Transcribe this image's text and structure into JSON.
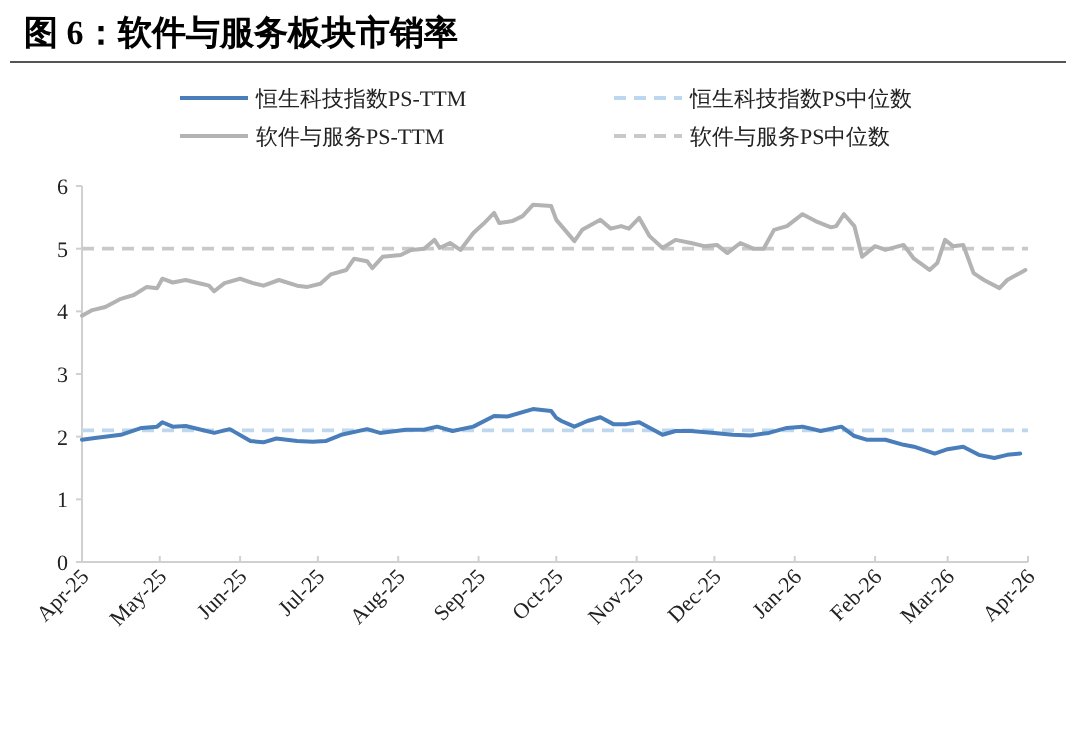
{
  "chart_data": {
    "type": "line",
    "title": "图 6：软件与服务板块市销率",
    "legend": "top",
    "grid": false,
    "xlim": [
      "2025-04-01",
      "2026-04-01"
    ],
    "xticks": [
      {
        "value": "2025-04-01",
        "label": "Apr-25"
      },
      {
        "value": "2025-05-01",
        "label": "May-25"
      },
      {
        "value": "2025-06-01",
        "label": "Jun-25"
      },
      {
        "value": "2025-07-01",
        "label": "Jul-25"
      },
      {
        "value": "2025-08-01",
        "label": "Aug-25"
      },
      {
        "value": "2025-09-01",
        "label": "Sep-25"
      },
      {
        "value": "2025-10-01",
        "label": "Oct-25"
      },
      {
        "value": "2025-11-01",
        "label": "Nov-25"
      },
      {
        "value": "2025-12-01",
        "label": "Dec-25"
      },
      {
        "value": "2026-01-01",
        "label": "Jan-26"
      },
      {
        "value": "2026-02-01",
        "label": "Feb-26"
      },
      {
        "value": "2026-03-01",
        "label": "Mar-26"
      },
      {
        "value": "2026-04-01",
        "label": "Apr-26"
      }
    ],
    "ylim": [
      0,
      6
    ],
    "yticks": [
      0,
      1,
      2,
      3,
      4,
      5,
      6
    ],
    "series": [
      {
        "name": "恒生科技指数PS-TTM",
        "color": "#4a7ebb",
        "line_style": "solid",
        "x": [
          "2025-04-01",
          "2025-04-06",
          "2025-04-16",
          "2025-04-24",
          "2025-04-30",
          "2025-05-02",
          "2025-05-06",
          "2025-05-11",
          "2025-05-17",
          "2025-05-22",
          "2025-05-28",
          "2025-06-05",
          "2025-06-10",
          "2025-06-15",
          "2025-06-23",
          "2025-06-29",
          "2025-07-04",
          "2025-07-10",
          "2025-07-20",
          "2025-07-25",
          "2025-08-04",
          "2025-08-11",
          "2025-08-16",
          "2025-08-22",
          "2025-08-30",
          "2025-09-07",
          "2025-09-12",
          "2025-09-22",
          "2025-09-29",
          "2025-10-01",
          "2025-10-03",
          "2025-10-08",
          "2025-10-13",
          "2025-10-18",
          "2025-10-23",
          "2025-10-28",
          "2025-11-02",
          "2025-11-11",
          "2025-11-16",
          "2025-11-22",
          "2025-12-01",
          "2025-12-08",
          "2025-12-15",
          "2025-12-22",
          "2025-12-29",
          "2026-01-04",
          "2026-01-11",
          "2026-01-19",
          "2026-01-24",
          "2026-01-29",
          "2026-02-05",
          "2026-02-12",
          "2026-02-16",
          "2026-02-24",
          "2026-03-01",
          "2026-03-07",
          "2026-03-13",
          "2026-03-19",
          "2026-03-24",
          "2026-03-29"
        ],
        "values": [
          1.95,
          1.98,
          2.03,
          2.14,
          2.16,
          2.23,
          2.16,
          2.17,
          2.11,
          2.06,
          2.12,
          1.93,
          1.91,
          1.97,
          1.93,
          1.92,
          1.93,
          2.03,
          2.12,
          2.06,
          2.11,
          2.11,
          2.16,
          2.09,
          2.16,
          2.33,
          2.32,
          2.44,
          2.41,
          2.3,
          2.25,
          2.16,
          2.25,
          2.31,
          2.2,
          2.2,
          2.23,
          2.03,
          2.09,
          2.09,
          2.06,
          2.03,
          2.02,
          2.06,
          2.14,
          2.16,
          2.09,
          2.16,
          2.01,
          1.95,
          1.95,
          1.87,
          1.84,
          1.73,
          1.8,
          1.84,
          1.71,
          1.66,
          1.71,
          1.73
        ]
      },
      {
        "name": "软件与服务PS-TTM",
        "color": "#b3b3b3",
        "line_style": "solid",
        "x": [
          "2025-04-01",
          "2025-04-05",
          "2025-04-10",
          "2025-04-16",
          "2025-04-21",
          "2025-04-26",
          "2025-04-30",
          "2025-05-02",
          "2025-05-06",
          "2025-05-11",
          "2025-05-17",
          "2025-05-20",
          "2025-05-22",
          "2025-05-26",
          "2025-06-01",
          "2025-06-06",
          "2025-06-10",
          "2025-06-16",
          "2025-06-23",
          "2025-06-27",
          "2025-07-02",
          "2025-07-06",
          "2025-07-12",
          "2025-07-15",
          "2025-07-20",
          "2025-07-22",
          "2025-07-26",
          "2025-08-02",
          "2025-08-06",
          "2025-08-11",
          "2025-08-15",
          "2025-08-17",
          "2025-08-21",
          "2025-08-25",
          "2025-08-30",
          "2025-09-03",
          "2025-09-07",
          "2025-09-09",
          "2025-09-14",
          "2025-09-18",
          "2025-09-22",
          "2025-09-29",
          "2025-10-01",
          "2025-10-08",
          "2025-10-11",
          "2025-10-18",
          "2025-10-22",
          "2025-10-26",
          "2025-10-29",
          "2025-11-02",
          "2025-11-06",
          "2025-11-11",
          "2025-11-16",
          "2025-11-22",
          "2025-11-27",
          "2025-12-02",
          "2025-12-06",
          "2025-12-11",
          "2025-12-16",
          "2025-12-20",
          "2025-12-24",
          "2025-12-29",
          "2026-01-04",
          "2026-01-09",
          "2026-01-15",
          "2026-01-17",
          "2026-01-20",
          "2026-01-24",
          "2026-01-27",
          "2026-02-01",
          "2026-02-05",
          "2026-02-12",
          "2026-02-16",
          "2026-02-22",
          "2026-02-25",
          "2026-02-28",
          "2026-03-03",
          "2026-03-07",
          "2026-03-11",
          "2026-03-15",
          "2026-03-21",
          "2026-03-24",
          "2026-03-31"
        ],
        "values": [
          3.93,
          4.02,
          4.07,
          4.2,
          4.26,
          4.39,
          4.37,
          4.52,
          4.46,
          4.5,
          4.44,
          4.41,
          4.32,
          4.45,
          4.52,
          4.45,
          4.41,
          4.5,
          4.41,
          4.39,
          4.44,
          4.59,
          4.66,
          4.84,
          4.8,
          4.69,
          4.87,
          4.9,
          4.98,
          5.0,
          5.14,
          5.01,
          5.09,
          4.98,
          5.25,
          5.4,
          5.57,
          5.41,
          5.44,
          5.52,
          5.7,
          5.68,
          5.46,
          5.12,
          5.3,
          5.46,
          5.32,
          5.36,
          5.32,
          5.49,
          5.2,
          5.01,
          5.14,
          5.09,
          5.04,
          5.06,
          4.93,
          5.09,
          5.0,
          5.0,
          5.3,
          5.36,
          5.55,
          5.44,
          5.34,
          5.36,
          5.55,
          5.36,
          4.87,
          5.04,
          4.98,
          5.06,
          4.84,
          4.66,
          4.77,
          5.14,
          5.04,
          5.06,
          4.61,
          4.5,
          4.37,
          4.5,
          4.66
        ]
      },
      {
        "name": "恒生科技指数PS中位数",
        "color": "#bdd7ee",
        "line_style": "dashed",
        "x": [
          "2025-04-01",
          "2026-04-01"
        ],
        "values": [
          2.1,
          2.1
        ]
      },
      {
        "name": "软件与服务PS中位数",
        "color": "#c9c9c9",
        "line_style": "dashed",
        "x": [
          "2025-04-01",
          "2026-04-01"
        ],
        "values": [
          5.0,
          5.0
        ]
      }
    ]
  }
}
